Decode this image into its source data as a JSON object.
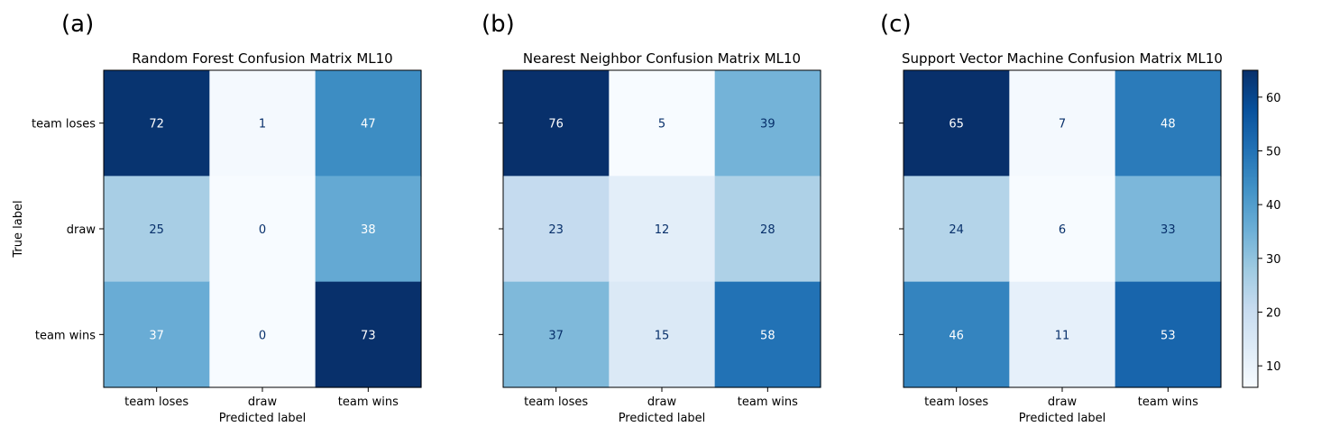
{
  "panel_letters": [
    "(a)",
    "(b)",
    "(c)"
  ],
  "chart_data": [
    {
      "type": "heatmap",
      "title": "Random Forest Confusion Matrix ML10",
      "xlabel": "Predicted label",
      "ylabel": "True label",
      "x_categories": [
        "team loses",
        "draw",
        "team wins"
      ],
      "y_categories": [
        "team loses",
        "draw",
        "team wins"
      ],
      "values": [
        [
          72,
          1,
          47
        ],
        [
          25,
          0,
          38
        ],
        [
          37,
          0,
          73
        ]
      ],
      "colormap": "Blues"
    },
    {
      "type": "heatmap",
      "title": "Nearest Neighbor Confusion Matrix ML10",
      "xlabel": "Predicted label",
      "ylabel": "",
      "x_categories": [
        "team loses",
        "draw",
        "team wins"
      ],
      "y_categories": [
        "team loses",
        "draw",
        "team wins"
      ],
      "values": [
        [
          76,
          5,
          39
        ],
        [
          23,
          12,
          28
        ],
        [
          37,
          15,
          58
        ]
      ],
      "colormap": "Blues"
    },
    {
      "type": "heatmap",
      "title": "Support Vector Machine Confusion Matrix ML10",
      "xlabel": "Predicted label",
      "ylabel": "",
      "x_categories": [
        "team loses",
        "draw",
        "team wins"
      ],
      "y_categories": [
        "team loses",
        "draw",
        "team wins"
      ],
      "values": [
        [
          65,
          7,
          48
        ],
        [
          24,
          6,
          33
        ],
        [
          46,
          11,
          53
        ]
      ],
      "colormap": "Blues",
      "colorbar": {
        "range": [
          6,
          65
        ],
        "ticks": [
          10,
          20,
          30,
          40,
          50,
          60
        ]
      }
    }
  ]
}
